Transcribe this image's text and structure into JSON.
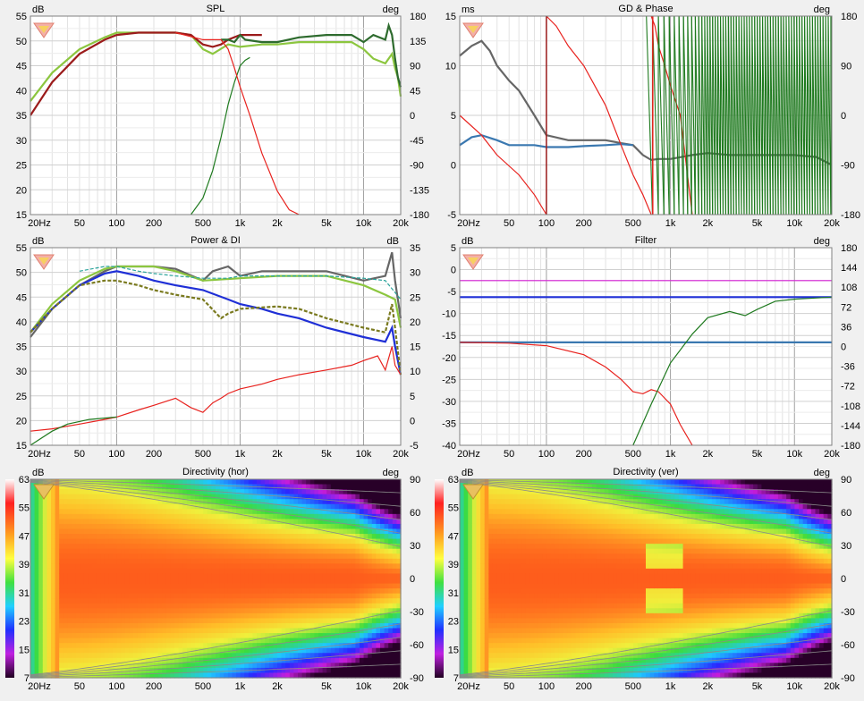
{
  "colors": {
    "red": "#e8221e",
    "darkred": "#9b1b1b",
    "green": "#1f7a1f",
    "darkgreen": "#2e6b2e",
    "lime": "#8cc63f",
    "gray": "#666666",
    "blue": "#1f2fd6",
    "steelblue": "#3a78b0",
    "olive": "#7a7a1f",
    "teal": "#2aa39b",
    "magenta": "#d21ad2"
  },
  "freq_ticks": [
    "20Hz",
    "50",
    "100",
    "200",
    "500",
    "1k",
    "2k",
    "5k",
    "10k",
    "20k"
  ],
  "chart_data": [
    {
      "id": "spl",
      "type": "line",
      "title": "SPL",
      "left_unit": "dB",
      "right_unit": "deg",
      "left_ticks": [
        "55",
        "50",
        "45",
        "40",
        "35",
        "30",
        "25",
        "20",
        "15"
      ],
      "right_ticks": [
        "180",
        "135",
        "90",
        "45",
        "0",
        "-45",
        "-90",
        "-135",
        "-180"
      ],
      "xlim": [
        20,
        20000
      ],
      "ylim": [
        15,
        57
      ],
      "series": [
        {
          "color": "lime",
          "axis": "left",
          "x": [
            20,
            30,
            50,
            80,
            100,
            150,
            200,
            300,
            400,
            500,
            600,
            800,
            1000,
            1500,
            2000,
            3000,
            5000,
            8000,
            10000,
            12000,
            15000,
            17000,
            18000,
            19000,
            20000
          ],
          "y": [
            39,
            45,
            50,
            52.5,
            53.5,
            53.5,
            53.5,
            53.5,
            53,
            50,
            49,
            51,
            50.5,
            51,
            51,
            51.5,
            51.5,
            51.5,
            50,
            48,
            47,
            49,
            46,
            44,
            40
          ]
        },
        {
          "color": "darkred",
          "axis": "left",
          "x": [
            20,
            30,
            50,
            80,
            100,
            150,
            200,
            300,
            400,
            500,
            600,
            700,
            800,
            1000,
            1500
          ],
          "y": [
            36,
            43,
            49,
            52,
            53,
            53.5,
            53.5,
            53.5,
            53,
            51,
            50.5,
            51,
            52,
            53,
            53
          ]
        },
        {
          "color": "darkgreen",
          "axis": "left",
          "x": [
            700,
            800,
            900,
            1000,
            1100,
            1500,
            2000,
            3000,
            5000,
            8000,
            10000,
            12000,
            15000,
            16000,
            17000,
            18000,
            19000,
            20000
          ],
          "y": [
            52,
            52,
            51.5,
            53,
            52,
            51.5,
            51.5,
            52.5,
            53,
            53,
            51.5,
            53,
            52,
            55,
            53,
            48,
            44,
            42
          ]
        },
        {
          "color": "green",
          "axis": "right",
          "x": [
            400,
            500,
            600,
            700,
            800,
            900,
            1000,
            1100,
            1200
          ],
          "y": [
            -180,
            -150,
            -100,
            -40,
            20,
            60,
            90,
            100,
            105
          ]
        },
        {
          "color": "red",
          "axis": "left",
          "x": [
            300,
            500,
            700,
            800,
            900,
            1000,
            1200,
            1500,
            2000,
            2500,
            3000
          ],
          "y": [
            53.5,
            52,
            52,
            50,
            46,
            42,
            36,
            28,
            20,
            16,
            14
          ]
        }
      ]
    },
    {
      "id": "gd",
      "type": "line",
      "title": "GD & Phase",
      "left_unit": "ms",
      "right_unit": "deg",
      "left_ticks": [
        "15",
        "10",
        "5",
        "0",
        "-5"
      ],
      "right_ticks": [
        "180",
        "90",
        "0",
        "-90",
        "-180"
      ],
      "xlim": [
        20,
        20000
      ],
      "ylim": [
        -5,
        15
      ],
      "series": [
        {
          "color": "gray",
          "axis": "left",
          "x": [
            20,
            25,
            30,
            35,
            40,
            50,
            60,
            80,
            100,
            150,
            200,
            300,
            400,
            500,
            600,
            700,
            800,
            1000,
            1500,
            2000,
            3000,
            5000,
            10000,
            15000,
            20000
          ],
          "y": [
            11,
            12,
            12.5,
            11.5,
            10,
            8.5,
            7.5,
            5,
            3,
            2.5,
            2.5,
            2.5,
            2.2,
            2,
            1,
            0.5,
            0.6,
            0.6,
            1,
            1.2,
            1,
            1,
            1,
            0.8,
            0
          ]
        },
        {
          "color": "steelblue",
          "axis": "left",
          "x": [
            20,
            25,
            30,
            40,
            50,
            60,
            80,
            100,
            150,
            200,
            300,
            400,
            500
          ],
          "y": [
            2,
            2.8,
            3,
            2.5,
            2,
            2,
            2,
            1.8,
            1.8,
            1.9,
            2,
            2.1,
            2
          ]
        },
        {
          "color": "red",
          "axis": "left",
          "x": [
            20,
            30,
            40,
            60,
            80,
            100
          ],
          "y": [
            5,
            3,
            1,
            -1,
            -3,
            -5
          ]
        },
        {
          "color": "red",
          "axis": "left",
          "x": [
            100,
            120,
            150,
            200,
            300,
            400,
            500,
            600,
            700
          ],
          "y": [
            15,
            14,
            12,
            10,
            6,
            2,
            -1,
            -3,
            -5
          ]
        },
        {
          "color": "red",
          "axis": "left",
          "x": [
            700,
            750,
            800,
            900,
            1000,
            1200,
            1500
          ],
          "y": [
            15,
            14,
            12,
            10,
            8,
            5,
            -5
          ]
        }
      ]
    },
    {
      "id": "power",
      "type": "line",
      "title": "Power & DI",
      "left_unit": "dB",
      "right_unit": "dB",
      "left_ticks": [
        "55",
        "50",
        "45",
        "40",
        "35",
        "30",
        "25",
        "20",
        "15"
      ],
      "right_ticks": [
        "35",
        "30",
        "25",
        "20",
        "15",
        "10",
        "5",
        "0",
        "-5"
      ],
      "xlim": [
        20,
        20000
      ],
      "ylim": [
        15,
        57
      ],
      "series": [
        {
          "color": "gray",
          "axis": "left",
          "x": [
            20,
            30,
            50,
            80,
            100,
            200,
            300,
            500,
            600,
            800,
            1000,
            1500,
            2000,
            5000,
            10000,
            15000,
            17000,
            18000,
            20000
          ],
          "y": [
            38,
            44,
            49,
            52,
            53,
            53,
            52.5,
            50,
            52,
            53,
            51,
            52,
            52,
            52,
            50,
            51,
            56,
            50,
            42
          ]
        },
        {
          "color": "lime",
          "axis": "left",
          "x": [
            20,
            30,
            50,
            80,
            100,
            200,
            300,
            500,
            1000,
            2000,
            5000,
            10000,
            15000,
            18000,
            20000
          ],
          "y": [
            39,
            45,
            50,
            52.5,
            53,
            53,
            52,
            50,
            50.5,
            51,
            51,
            49,
            47,
            46,
            40
          ]
        },
        {
          "color": "blue",
          "axis": "left",
          "x": [
            20,
            30,
            50,
            80,
            100,
            150,
            200,
            300,
            500,
            800,
            1000,
            1500,
            2000,
            3000,
            5000,
            10000,
            15000,
            17000,
            18000,
            20000
          ],
          "y": [
            39,
            44,
            49,
            51.5,
            52,
            51,
            50,
            49,
            48,
            46,
            45,
            44,
            43,
            42,
            40,
            38,
            37,
            40,
            36,
            30
          ]
        },
        {
          "color": "olive",
          "axis": "left",
          "x": [
            20,
            30,
            50,
            80,
            100,
            150,
            200,
            300,
            500,
            700,
            800,
            1000,
            2000,
            3000,
            5000,
            10000,
            15000,
            17000,
            18000,
            20000
          ],
          "y": [
            39,
            44,
            49,
            50,
            50,
            49,
            48,
            47,
            46,
            42,
            43,
            44,
            44.5,
            44,
            42,
            40,
            39,
            45,
            40,
            30
          ]
        },
        {
          "color": "teal",
          "axis": "left",
          "x": [
            50,
            80,
            100,
            150,
            200,
            300,
            500,
            800,
            1000,
            2000,
            5000,
            10000,
            15000,
            20000
          ],
          "y": [
            52,
            53,
            53,
            52,
            51.5,
            51,
            50.5,
            50.5,
            51,
            51,
            51,
            50.5,
            50,
            46
          ]
        },
        {
          "color": "red",
          "axis": "left",
          "x": [
            20,
            30,
            50,
            80,
            100,
            150,
            200,
            300,
            400,
            500,
            600,
            700,
            800,
            1000,
            1500,
            2000,
            3000,
            5000,
            8000,
            10000,
            13000,
            15000,
            17000,
            18000,
            20000
          ],
          "y": [
            18,
            18.5,
            19.5,
            20.5,
            21,
            22.5,
            23.5,
            25,
            23,
            22,
            24,
            25,
            26,
            27,
            28,
            29,
            30,
            31,
            32,
            33,
            34,
            31,
            36,
            32,
            30
          ]
        },
        {
          "color": "green",
          "axis": "left",
          "x": [
            20,
            30,
            40,
            60,
            100
          ],
          "y": [
            15,
            18,
            19.5,
            20.5,
            21
          ]
        }
      ]
    },
    {
      "id": "filter",
      "type": "line",
      "title": "Filter",
      "left_unit": "dB",
      "right_unit": "deg",
      "left_ticks": [
        "5",
        "0",
        "-5",
        "-10",
        "-15",
        "-20",
        "-25",
        "-30",
        "-35",
        "-40"
      ],
      "right_ticks": [
        "180",
        "144",
        "108",
        "72",
        "36",
        "0",
        "-36",
        "-72",
        "-108",
        "-144",
        "-180"
      ],
      "xlim": [
        20,
        20000
      ],
      "ylim": [
        -40,
        8
      ],
      "series": [
        {
          "color": "magenta",
          "axis": "left",
          "x": [
            20,
            20000
          ],
          "y": [
            0,
            0
          ]
        },
        {
          "color": "blue",
          "axis": "left",
          "x": [
            20,
            20000
          ],
          "y": [
            -4,
            -4
          ]
        },
        {
          "color": "steelblue",
          "axis": "left",
          "x": [
            20,
            20000
          ],
          "y": [
            -15,
            -15
          ]
        },
        {
          "color": "red",
          "axis": "left",
          "x": [
            20,
            50,
            100,
            200,
            300,
            400,
            500,
            600,
            700,
            800,
            1000,
            1200,
            1500
          ],
          "y": [
            -15,
            -15.2,
            -15.8,
            -18,
            -21,
            -24,
            -27,
            -27.5,
            -26.5,
            -27,
            -30,
            -35,
            -40
          ]
        },
        {
          "color": "green",
          "axis": "left",
          "x": [
            500,
            700,
            1000,
            1500,
            2000,
            3000,
            4000,
            5000,
            7000,
            10000,
            20000
          ],
          "y": [
            -40,
            -30,
            -20,
            -13,
            -9,
            -7.5,
            -8.5,
            -7,
            -5,
            -4.5,
            -4
          ]
        }
      ]
    },
    {
      "id": "dir_hor",
      "type": "heatmap",
      "title": "Directivity (hor)",
      "left_unit": "dB",
      "right_unit": "deg",
      "left_ticks": [
        "63",
        "55",
        "47",
        "39",
        "31",
        "23",
        "15",
        "7"
      ],
      "right_ticks": [
        "90",
        "60",
        "30",
        "0",
        "-30",
        "-60",
        "-90"
      ]
    },
    {
      "id": "dir_ver",
      "type": "heatmap",
      "title": "Directivity (ver)",
      "left_unit": "dB",
      "right_unit": "deg",
      "left_ticks": [
        "63",
        "55",
        "47",
        "39",
        "31",
        "23",
        "15",
        "7"
      ],
      "right_ticks": [
        "90",
        "60",
        "30",
        "0",
        "-30",
        "-60",
        "-90"
      ]
    }
  ]
}
